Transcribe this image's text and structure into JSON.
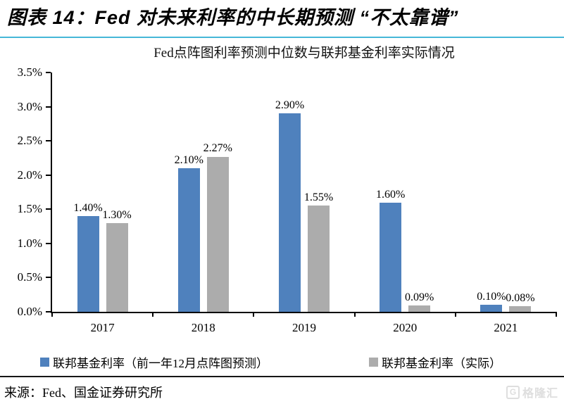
{
  "page": {
    "title": "图表 14：Fed 对未来利率的中长期预测 “不太靠谱”",
    "source": "来源：Fed、国金证券研究所",
    "brand_icon": "G",
    "brand_name": "格隆汇"
  },
  "colors": {
    "header_rule": "#45b7d8",
    "footer_rule": "#161616",
    "axis": "#000000",
    "predicted_series": "#4F81BD",
    "actual_series": "#ACACAC",
    "brand_gray": "#dedede"
  },
  "chart_data": {
    "type": "bar",
    "title": "Fed点阵图利率预测中位数与联邦基金利率实际情况",
    "categories": [
      "2017",
      "2018",
      "2019",
      "2020",
      "2021"
    ],
    "series": [
      {
        "name": "联邦基金利率（前一年12月点阵图预测）",
        "color": "#4F81BD",
        "values": [
          1.4,
          2.1,
          2.9,
          1.6,
          0.1
        ],
        "labels": [
          "1.40%",
          "2.10%",
          "2.90%",
          "1.60%",
          "0.10%"
        ]
      },
      {
        "name": "联邦基金利率（实际）",
        "color": "#ACACAC",
        "values": [
          1.3,
          2.27,
          1.55,
          0.09,
          0.08
        ],
        "labels": [
          "1.30%",
          "2.27%",
          "1.55%",
          "0.09%",
          "0.08%"
        ]
      }
    ],
    "xlabel": "",
    "ylabel": "",
    "ylim": [
      0,
      3.5
    ],
    "ytick_step": 0.5,
    "yticks": [
      "3.5%",
      "3.0%",
      "2.5%",
      "2.0%",
      "1.5%",
      "1.0%",
      "0.5%",
      "0.0%"
    ],
    "grid": false,
    "legend_position": "bottom"
  }
}
